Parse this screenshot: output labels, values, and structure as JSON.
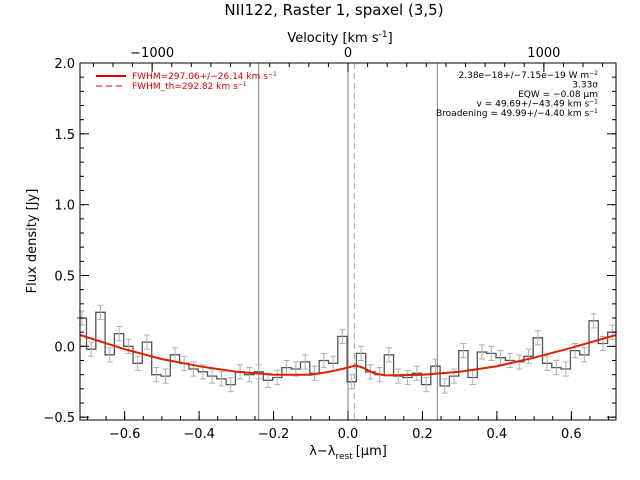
{
  "chart_data": {
    "type": "line",
    "title": "NII122, Raster 1, spaxel (3,5)",
    "xlabel_main": "λ−λ",
    "xlabel_sub": "rest",
    "xlabel_unit": "[μm]",
    "ylabel": "Flux density [Jy]",
    "top_axis_label": "Velocity [km s",
    "top_axis_label_sup": "-1",
    "top_axis_label_close": "]",
    "xlim": [
      -0.72,
      0.72
    ],
    "ylim": [
      -0.52,
      2.0
    ],
    "x_ticks": [
      -0.6,
      -0.4,
      -0.2,
      0.0,
      0.2,
      0.4,
      0.6
    ],
    "x_tick_labels": [
      "−0.6",
      "−0.4",
      "−0.2",
      "0.0",
      "0.2",
      "0.4",
      "0.6"
    ],
    "y_ticks": [
      -0.5,
      0.0,
      0.5,
      1.0,
      1.5,
      2.0
    ],
    "y_tick_labels": [
      "−0.5",
      "0.0",
      "0.5",
      "1.0",
      "1.5",
      "2.0"
    ],
    "top_ticks_kms": [
      -1000,
      0,
      1000
    ],
    "top_tick_labels": [
      "−1000",
      "0",
      "1000"
    ],
    "legend_placement": "top-left",
    "legend": [
      {
        "label": "FWHM=297.06+/−26.14 km s",
        "sup": "−1",
        "style": "solid",
        "color": "#dd0000"
      },
      {
        "label": "FWHM_th=292.82 km s",
        "sup": "−1",
        "style": "dashed",
        "color": "#dd0000"
      }
    ],
    "annotations": [
      {
        "text": "2.38e−18+/−7.15e−19 W m",
        "sup": "−2"
      },
      {
        "text": "3.33σ",
        "sup": ""
      },
      {
        "text": "EQW = −0.08 μm",
        "sup": ""
      },
      {
        "text": "v = 49.69+/−43.49 km s",
        "sup": "−1"
      },
      {
        "text": "Broadening = 49.99+/−4.40 km s",
        "sup": "−1"
      }
    ],
    "vertical_lines": [
      {
        "x": -0.24,
        "style": "solid",
        "color": "#808080"
      },
      {
        "x": 0.0,
        "style": "solid",
        "color": "#808080"
      },
      {
        "x": 0.017,
        "style": "dashed",
        "color": "#a0a0a0"
      },
      {
        "x": 0.24,
        "style": "solid",
        "color": "#808080"
      }
    ],
    "series": [
      {
        "name": "data",
        "style": "step",
        "color": "#808080",
        "x": [
          -0.715,
          -0.69,
          -0.665,
          -0.64,
          -0.615,
          -0.59,
          -0.565,
          -0.54,
          -0.515,
          -0.49,
          -0.465,
          -0.44,
          -0.415,
          -0.39,
          -0.365,
          -0.34,
          -0.315,
          -0.29,
          -0.265,
          -0.24,
          -0.215,
          -0.19,
          -0.165,
          -0.14,
          -0.115,
          -0.09,
          -0.065,
          -0.04,
          -0.015,
          0.01,
          0.035,
          0.06,
          0.085,
          0.11,
          0.135,
          0.16,
          0.185,
          0.21,
          0.235,
          0.26,
          0.285,
          0.31,
          0.335,
          0.36,
          0.385,
          0.41,
          0.435,
          0.46,
          0.485,
          0.51,
          0.535,
          0.56,
          0.585,
          0.61,
          0.635,
          0.66,
          0.685,
          0.71
        ],
        "y": [
          0.2,
          -0.02,
          0.24,
          -0.06,
          0.09,
          0.0,
          -0.12,
          0.03,
          -0.2,
          -0.21,
          -0.06,
          -0.12,
          -0.16,
          -0.18,
          -0.21,
          -0.23,
          -0.27,
          -0.18,
          -0.2,
          -0.18,
          -0.24,
          -0.22,
          -0.15,
          -0.16,
          -0.11,
          -0.19,
          -0.1,
          -0.12,
          0.07,
          -0.25,
          -0.05,
          -0.18,
          -0.2,
          -0.06,
          -0.21,
          -0.22,
          -0.19,
          -0.27,
          -0.14,
          -0.28,
          -0.21,
          -0.03,
          -0.22,
          -0.04,
          -0.05,
          -0.08,
          -0.1,
          -0.11,
          -0.07,
          0.06,
          -0.12,
          -0.15,
          -0.16,
          -0.03,
          -0.06,
          0.18,
          0.02,
          0.1
        ],
        "err": 0.05
      },
      {
        "name": "fit",
        "style": "line",
        "color": "#dd2200",
        "x": [
          -0.72,
          -0.6,
          -0.5,
          -0.4,
          -0.3,
          -0.2,
          -0.1,
          -0.05,
          0.0,
          0.02,
          0.04,
          0.07,
          0.1,
          0.2,
          0.3,
          0.4,
          0.5,
          0.6,
          0.72
        ],
        "y": [
          0.08,
          -0.02,
          -0.09,
          -0.14,
          -0.18,
          -0.2,
          -0.2,
          -0.18,
          -0.15,
          -0.135,
          -0.15,
          -0.19,
          -0.205,
          -0.2,
          -0.18,
          -0.14,
          -0.08,
          -0.01,
          0.08
        ]
      }
    ]
  }
}
